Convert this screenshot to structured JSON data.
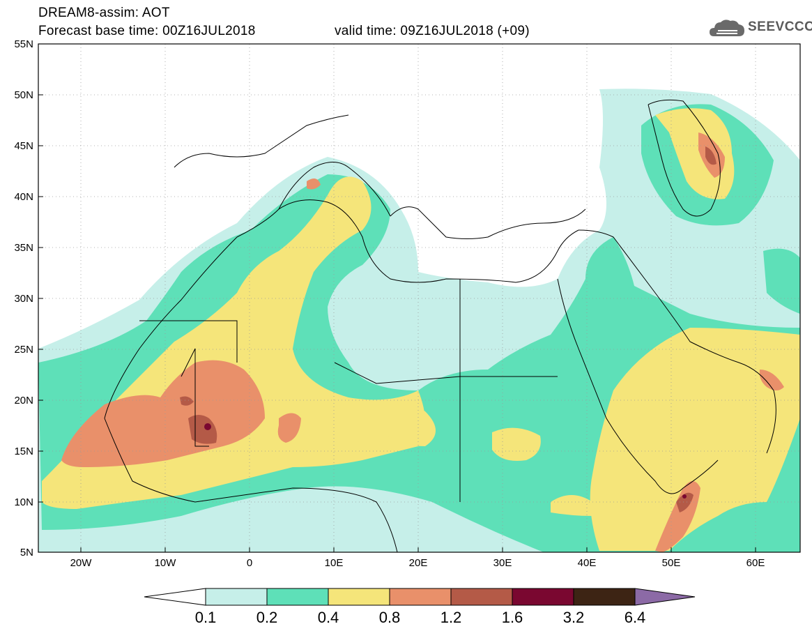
{
  "header": {
    "title": "DREAM8-assim: AOT",
    "base_time": "Forecast base time: 00Z16JUL2018",
    "valid_time": "valid time: 09Z16JUL2018 (+09)",
    "logo_text": "SEEVCCC",
    "logo_icon": "cloud-icon"
  },
  "map": {
    "projection": "lat-lon",
    "extent": {
      "lon": [
        -25,
        65
      ],
      "lat": [
        5,
        55
      ]
    },
    "latitude_labels": [
      "55N",
      "50N",
      "45N",
      "40N",
      "35N",
      "30N",
      "25N",
      "20N",
      "15N",
      "10N",
      "5N"
    ],
    "longitude_labels": [
      "20W",
      "10W",
      "0",
      "10E",
      "20E",
      "30E",
      "40E",
      "50E",
      "60E"
    ],
    "gridlines": "dotted"
  },
  "colorbar": {
    "labels": [
      "0.1",
      "0.2",
      "0.4",
      "0.8",
      "1.2",
      "1.6",
      "3.2",
      "6.4"
    ],
    "colors": [
      "#ffffff",
      "#c6efe9",
      "#5ee0b8",
      "#f5e57a",
      "#e9906a",
      "#b45a47",
      "#7a0730",
      "#3d2414",
      "#8c6aa6"
    ]
  }
}
